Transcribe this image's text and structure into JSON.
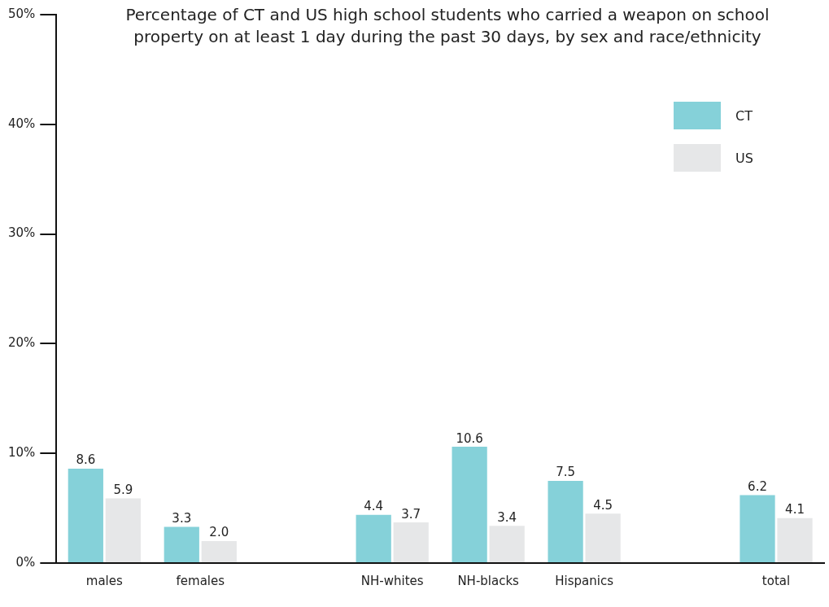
{
  "chart_data": {
    "type": "bar",
    "title": "Percentage of CT and US high school students who carried a weapon on school property on at least 1 day during the past 30 days, by sex and race/ethnicity",
    "categories": [
      "males",
      "females",
      null,
      "NH-whites",
      "NH-blacks",
      "Hispanics",
      null,
      "total"
    ],
    "series": [
      {
        "name": "CT",
        "color": "#85d1d9",
        "values": [
          8.6,
          3.3,
          null,
          4.4,
          10.6,
          7.5,
          null,
          6.2
        ],
        "value_labels": [
          "8.6",
          "3.3",
          null,
          "4.4",
          "10.6",
          "7.5",
          null,
          "6.2"
        ]
      },
      {
        "name": "US",
        "color": "#e6e7e8",
        "values": [
          5.9,
          2.0,
          null,
          3.7,
          3.4,
          4.5,
          null,
          4.1
        ],
        "value_labels": [
          "5.9",
          "2.0",
          null,
          "3.7",
          "3.4",
          "4.5",
          null,
          "4.1"
        ]
      }
    ],
    "ylim": [
      0,
      50
    ],
    "yticks": [
      {
        "value": 0,
        "label": "0%"
      },
      {
        "value": 10,
        "label": "10%"
      },
      {
        "value": 20,
        "label": "20%"
      },
      {
        "value": 30,
        "label": "30%"
      },
      {
        "value": 40,
        "label": "40%"
      },
      {
        "value": 50,
        "label": "50%"
      }
    ],
    "grid": false,
    "legend": "top right"
  }
}
